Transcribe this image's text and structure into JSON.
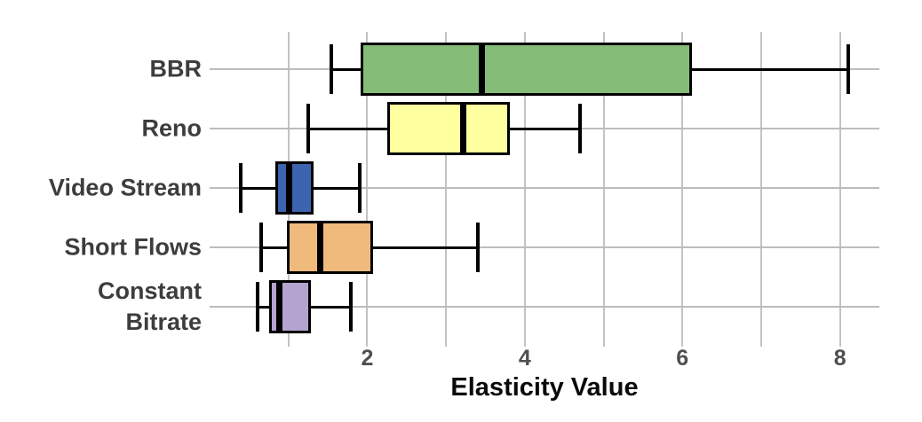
{
  "chart_data": {
    "type": "boxplot",
    "orientation": "horizontal",
    "title": "",
    "xlabel": "Elasticity Value",
    "ylabel": "",
    "xlim": [
      0,
      8.5
    ],
    "x_ticks": [
      2,
      4,
      6,
      8
    ],
    "grid_x": [
      1,
      2,
      3,
      4,
      5,
      6,
      7,
      8
    ],
    "grid": "on",
    "legend": "none",
    "categories": [
      "BBR",
      "Reno",
      "Video Stream",
      "Short Flows",
      "Constant Bitrate"
    ],
    "series": [
      {
        "label": "BBR",
        "label_lines": [
          "BBR"
        ],
        "whisker_low": 1.55,
        "q1": 1.92,
        "median": 3.45,
        "q3": 6.12,
        "whisker_high": 8.1,
        "color": "#85bd78"
      },
      {
        "label": "Reno",
        "label_lines": [
          "Reno"
        ],
        "whisker_low": 1.25,
        "q1": 2.26,
        "median": 3.22,
        "q3": 3.81,
        "whisker_high": 4.7,
        "color": "#feff9e"
      },
      {
        "label": "Video Stream",
        "label_lines": [
          "Video Stream"
        ],
        "whisker_low": 0.4,
        "q1": 0.83,
        "median": 1.01,
        "q3": 1.32,
        "whisker_high": 1.9,
        "color": "#3d64ae"
      },
      {
        "label": "Short Flows",
        "label_lines": [
          "Short Flows"
        ],
        "whisker_low": 0.65,
        "q1": 0.98,
        "median": 1.4,
        "q3": 2.07,
        "whisker_high": 3.4,
        "color": "#f1ba7d"
      },
      {
        "label": "Constant Bitrate",
        "label_lines": [
          "Constant",
          "Bitrate"
        ],
        "whisker_low": 0.61,
        "q1": 0.75,
        "median": 0.88,
        "q3": 1.28,
        "whisker_high": 1.79,
        "color": "#b3a4cf"
      }
    ],
    "colors": {
      "grid": "#c3c3c3",
      "row_grid": "#bcbcbc",
      "box_border": "#000000",
      "median": "#000000",
      "category_label": "#3d3d3d",
      "tick_label": "#4f4f4f",
      "axis_title": "#0a0a0a",
      "background": "#ffffff"
    }
  }
}
